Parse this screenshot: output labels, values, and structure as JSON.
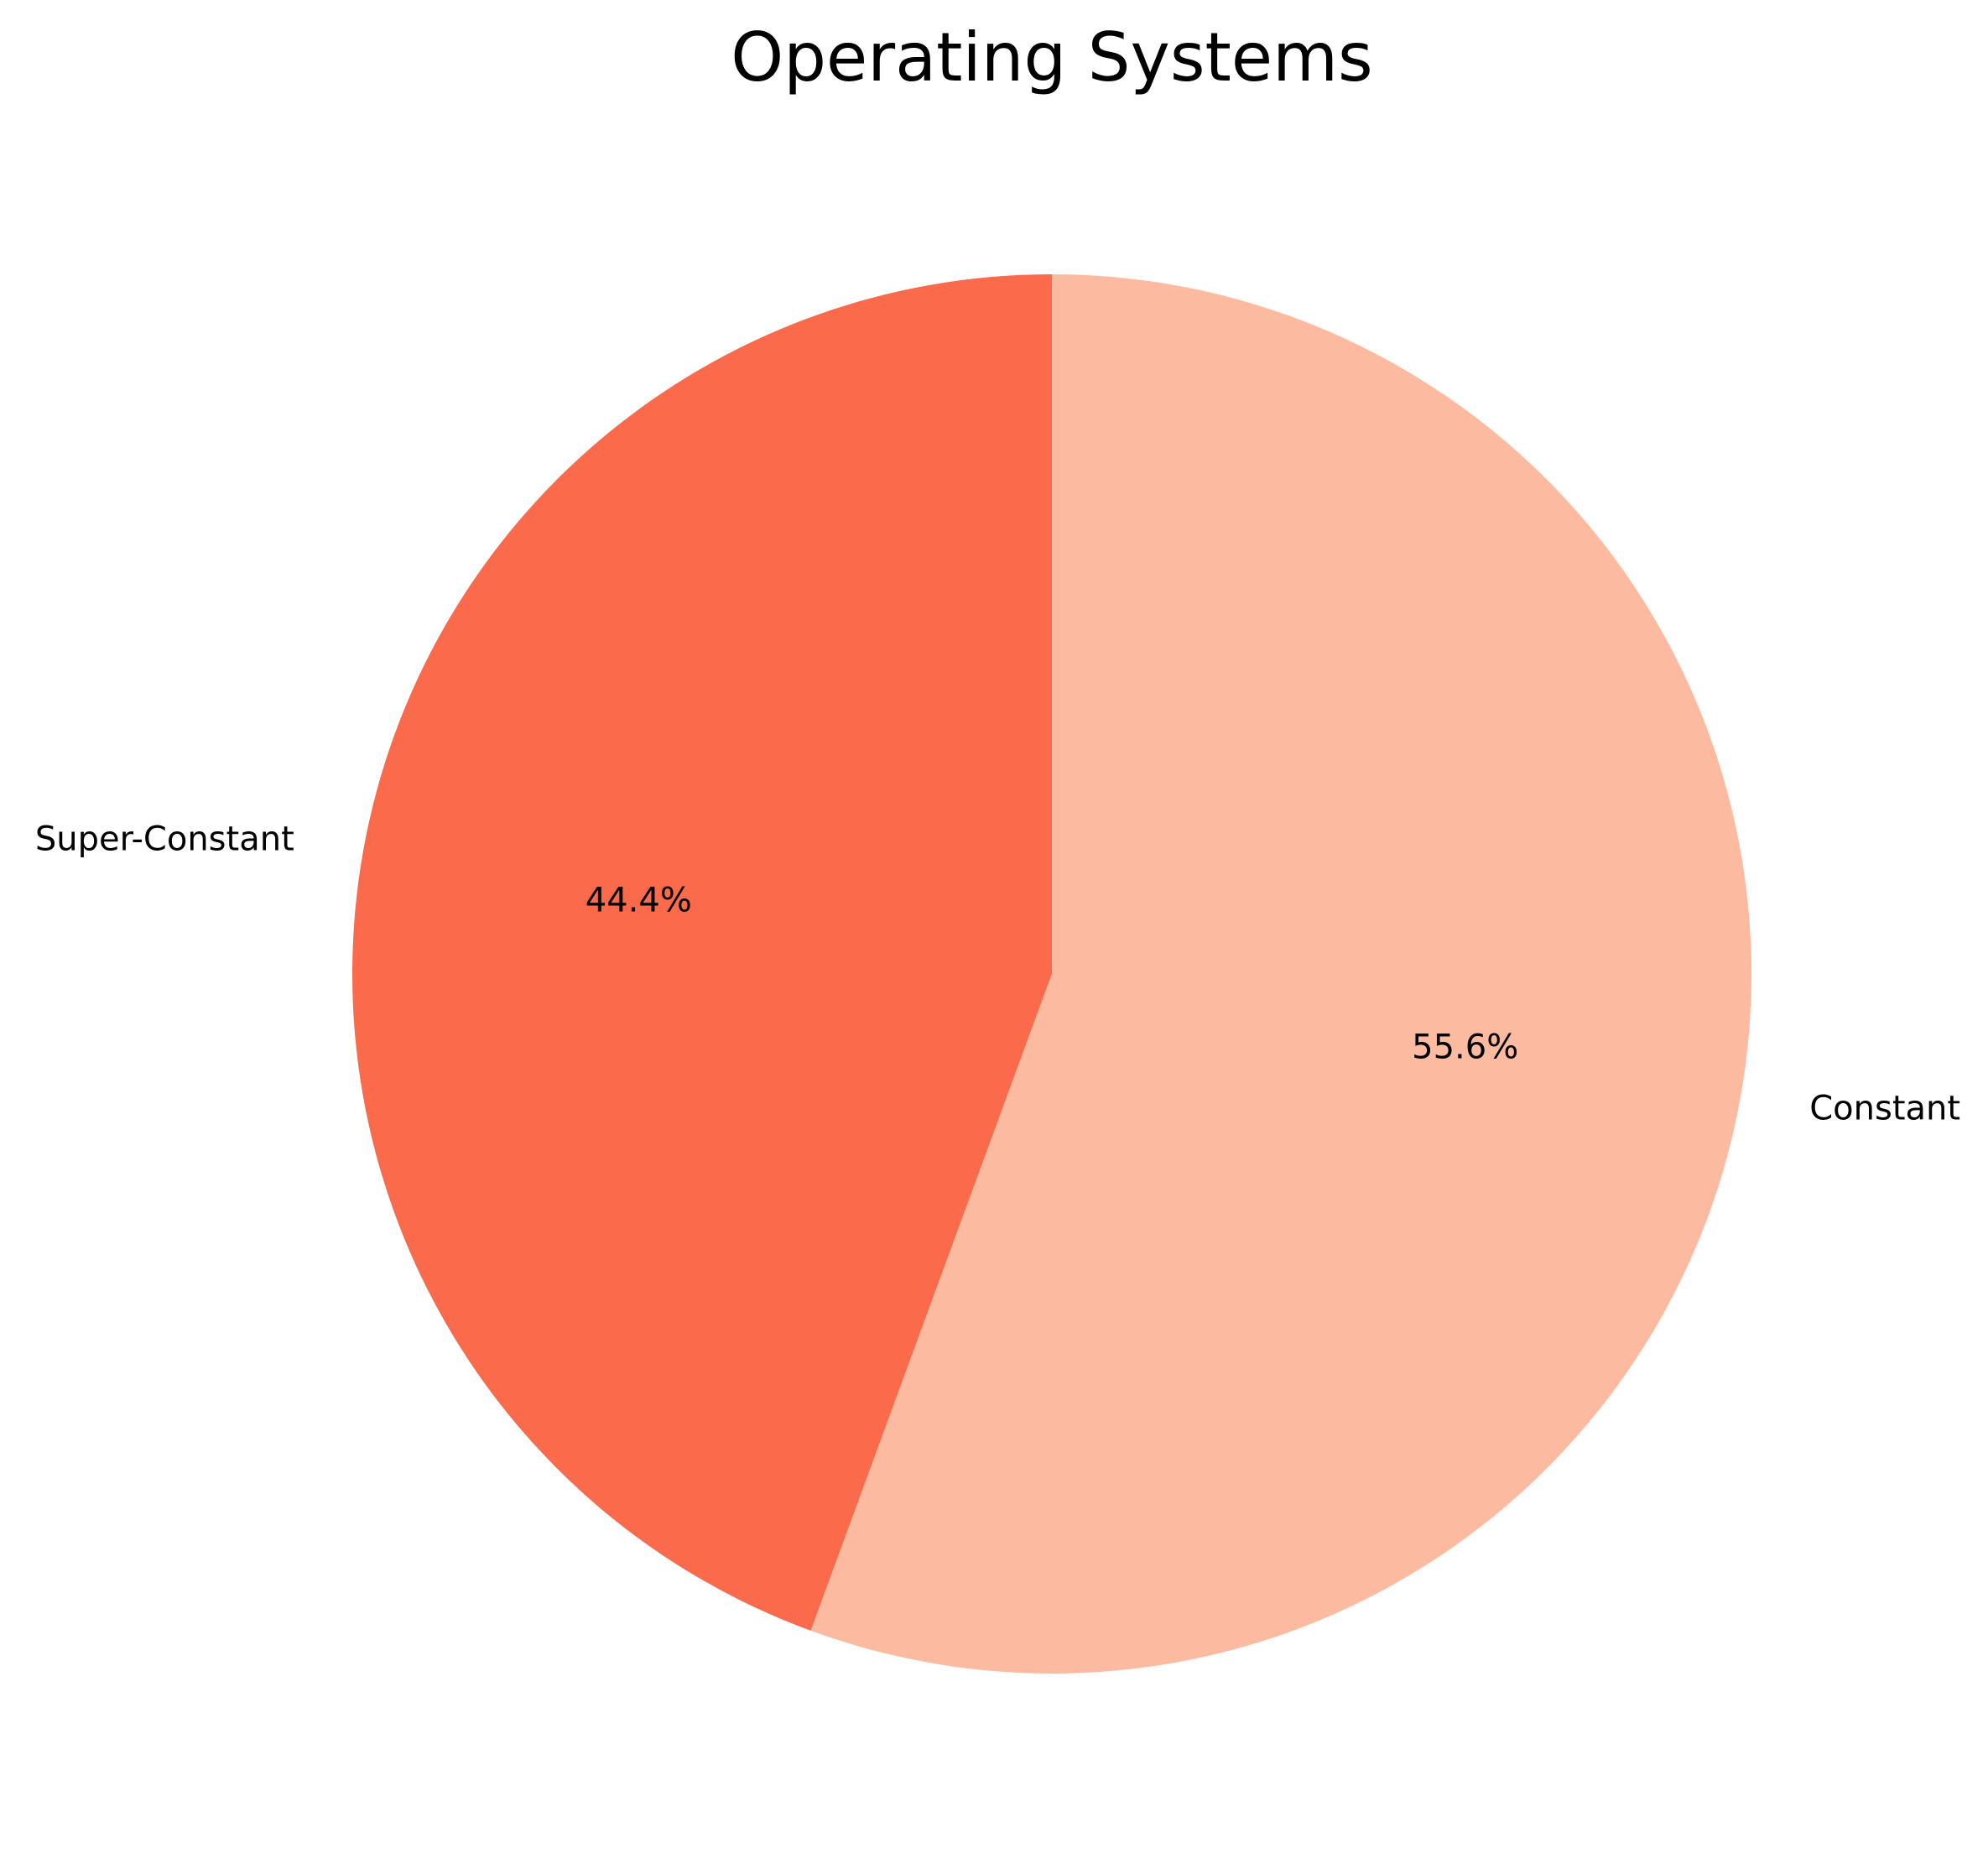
{
  "chart_data": {
    "type": "pie",
    "title": "Operating Systems",
    "slices": [
      {
        "label": "Super-Constant",
        "value": 44.4,
        "pct_label": "44.4%",
        "color": "#fb6a4a"
      },
      {
        "label": "Constant",
        "value": 55.6,
        "pct_label": "55.6%",
        "color": "#fcbba1"
      }
    ],
    "start_angle_deg": 90,
    "direction": "counterclockwise",
    "legend": "none"
  }
}
